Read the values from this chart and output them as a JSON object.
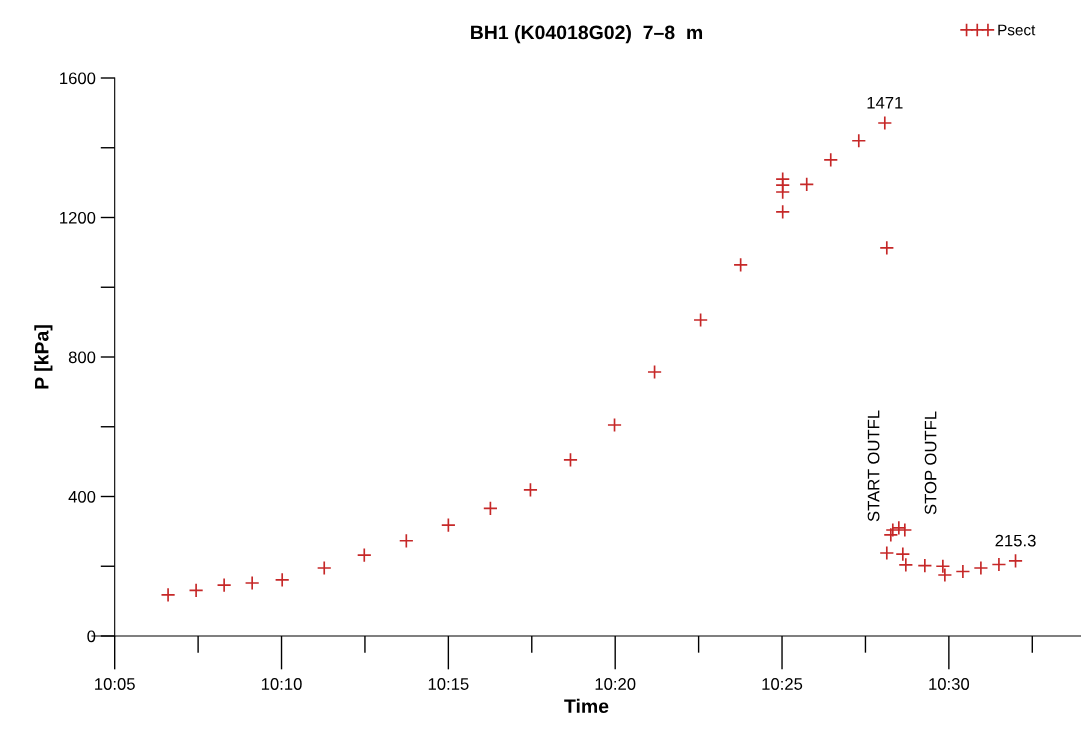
{
  "chart_data": {
    "type": "scatter",
    "title": "BH1 (K04018G02)  7–8  m",
    "xlabel": "Time",
    "ylabel": "P [kPa]",
    "series": [
      {
        "name": "Psect",
        "color": "#c62828",
        "marker": "cross",
        "x": [
          10.11,
          10.124,
          10.138,
          10.152,
          10.167,
          10.188,
          10.208,
          10.229,
          10.25,
          10.271,
          10.291,
          10.311,
          10.333,
          10.353,
          10.376,
          10.396,
          10.417,
          10.417,
          10.417,
          10.417,
          10.429,
          10.441,
          10.455,
          10.468,
          10.469,
          10.469,
          10.471,
          10.472,
          10.475,
          10.477,
          10.478,
          10.4785,
          10.488,
          10.497,
          10.498,
          10.507,
          10.516,
          10.525,
          10.5333
        ],
        "values": [
          118,
          131,
          146,
          152,
          161,
          195,
          232,
          273,
          318,
          366,
          419,
          505,
          605,
          757,
          906,
          1064,
          1216,
          1310,
          1293,
          1273,
          1295,
          1365,
          1420,
          1471,
          1113,
          238,
          290,
          304,
          310,
          235,
          304,
          204,
          202,
          200,
          175,
          185,
          195,
          205,
          215.3
        ],
        "value_labels": [
          null,
          null,
          null,
          null,
          null,
          null,
          null,
          null,
          null,
          null,
          null,
          null,
          null,
          null,
          null,
          null,
          null,
          null,
          null,
          null,
          null,
          null,
          null,
          "1471",
          null,
          null,
          null,
          null,
          null,
          null,
          null,
          null,
          null,
          null,
          null,
          null,
          null,
          null,
          "215.3"
        ]
      }
    ],
    "annotations": [
      "START OUTFL",
      "STOP OUTFL"
    ],
    "xlim": [
      10.072,
      10.566
    ],
    "xticks": [
      {
        "value": 10.083333,
        "label": "10:05"
      },
      {
        "value": 10.166667,
        "label": "10:10"
      },
      {
        "value": 10.25,
        "label": "10:15"
      },
      {
        "value": 10.333333,
        "label": "10:20"
      },
      {
        "value": 10.416667,
        "label": "10:25"
      },
      {
        "value": 10.5,
        "label": "10:30"
      }
    ],
    "ylim": [
      0,
      1600
    ],
    "yticks": [
      0,
      {
        "value": 200,
        "label": null
      },
      400,
      {
        "value": 600,
        "label": null
      },
      800,
      {
        "value": 1000,
        "label": null
      },
      1200,
      {
        "value": 1400,
        "label": null
      },
      1600
    ],
    "grid": false,
    "legend": "top right"
  }
}
